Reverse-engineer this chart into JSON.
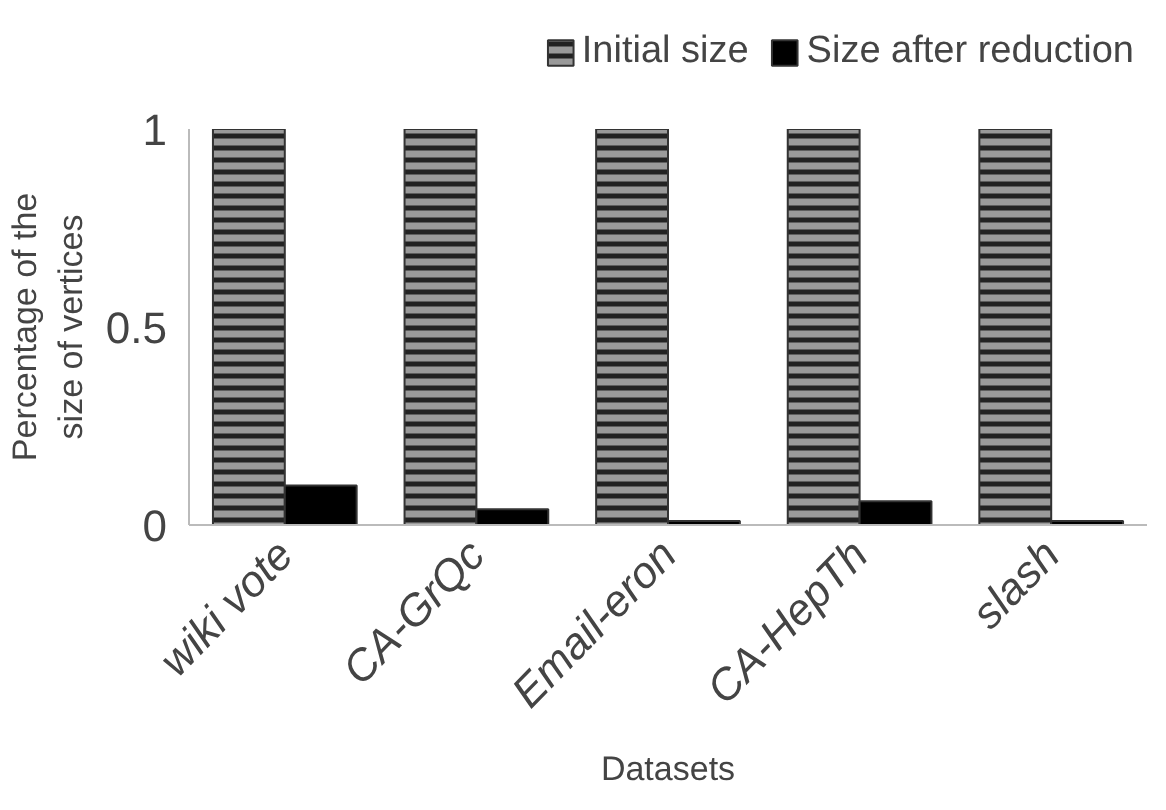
{
  "chart_data": {
    "type": "bar",
    "xlabel": "Datasets",
    "ylabel": "Percentage of the size of vertices",
    "categories": [
      "wiki vote",
      "CA-GrQc",
      "Email-eron",
      "CA-HepTh",
      "slash"
    ],
    "series": [
      {
        "name": "Initial size",
        "color": "#9a9a9a",
        "values": [
          1,
          1,
          1,
          1,
          1
        ]
      },
      {
        "name": "Size after reduction",
        "color": "#000000",
        "values": [
          0.1,
          0.04,
          0.01,
          0.06,
          0.01
        ]
      }
    ],
    "ylim": [
      0,
      1
    ],
    "yticks": [
      0,
      0.5,
      1
    ],
    "grid": false,
    "legend": "top"
  }
}
